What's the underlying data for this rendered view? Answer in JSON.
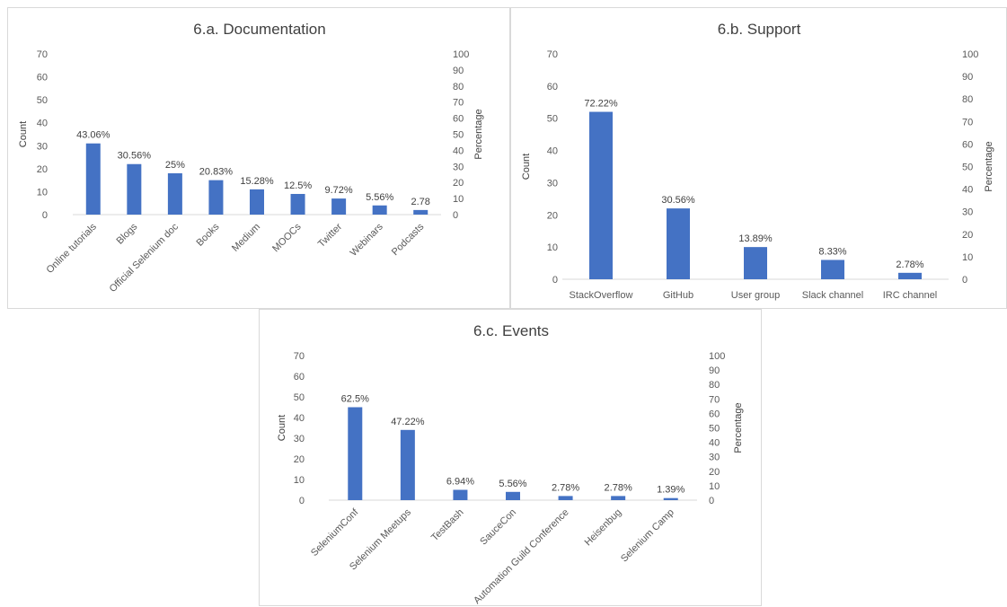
{
  "chart_data": [
    {
      "type": "bar",
      "title": "6.a. Documentation",
      "ylabel": "Count",
      "y2label": "Percentage",
      "ylim": [
        0,
        70
      ],
      "y2lim": [
        0,
        100
      ],
      "yticks": [
        "0",
        "10",
        "20",
        "30",
        "40",
        "50",
        "60",
        "70"
      ],
      "y2ticks": [
        "0",
        "10",
        "20",
        "30",
        "40",
        "50",
        "60",
        "70",
        "80",
        "90",
        "100"
      ],
      "categories": [
        "Online tutorials",
        "Blogs",
        "Official Selenium doc",
        "Books",
        "Medium",
        "MOOCs",
        "Twitter",
        "Webinars",
        "Podcasts"
      ],
      "values": [
        31,
        22,
        18,
        15,
        11,
        9,
        7,
        4,
        2
      ],
      "labels": [
        "43.06%",
        "30.56%",
        "25%",
        "20.83%",
        "15.28%",
        "12.5%",
        "9.72%",
        "5.56%",
        "2.78"
      ],
      "bar_color": "#4472c4",
      "grid": false,
      "rotated_categories": true
    },
    {
      "type": "bar",
      "title": "6.b. Support",
      "ylabel": "Count",
      "y2label": "Percentage",
      "ylim": [
        0,
        70
      ],
      "y2lim": [
        0,
        100
      ],
      "yticks": [
        "0",
        "10",
        "20",
        "30",
        "40",
        "50",
        "60",
        "70"
      ],
      "y2ticks": [
        "0",
        "10",
        "20",
        "30",
        "40",
        "50",
        "60",
        "70",
        "80",
        "90",
        "100"
      ],
      "categories": [
        "StackOverflow",
        "GitHub",
        "User group",
        "Slack channel",
        "IRC channel"
      ],
      "values": [
        52,
        22,
        10,
        6,
        2
      ],
      "labels": [
        "72.22%",
        "30.56%",
        "13.89%",
        "8.33%",
        "2.78%"
      ],
      "bar_color": "#4472c4",
      "grid": false,
      "rotated_categories": false
    },
    {
      "type": "bar",
      "title": "6.c. Events",
      "ylabel": "Count",
      "y2label": "Percentage",
      "ylim": [
        0,
        70
      ],
      "y2lim": [
        0,
        100
      ],
      "yticks": [
        "0",
        "10",
        "20",
        "30",
        "40",
        "50",
        "60",
        "70"
      ],
      "y2ticks": [
        "0",
        "10",
        "20",
        "30",
        "40",
        "50",
        "60",
        "70",
        "80",
        "90",
        "100"
      ],
      "categories": [
        "SeleniumConf",
        "Selenium Meetups",
        "TestBash",
        "SauceCon",
        "Automation Guild Conference",
        "Heisenbug",
        "Selenium Camp"
      ],
      "values": [
        45,
        34,
        5,
        4,
        2,
        2,
        1
      ],
      "labels": [
        "62.5%",
        "47.22%",
        "6.94%",
        "5.56%",
        "2.78%",
        "2.78%",
        "1.39%"
      ],
      "bar_color": "#4472c4",
      "grid": false,
      "rotated_categories": true
    }
  ]
}
